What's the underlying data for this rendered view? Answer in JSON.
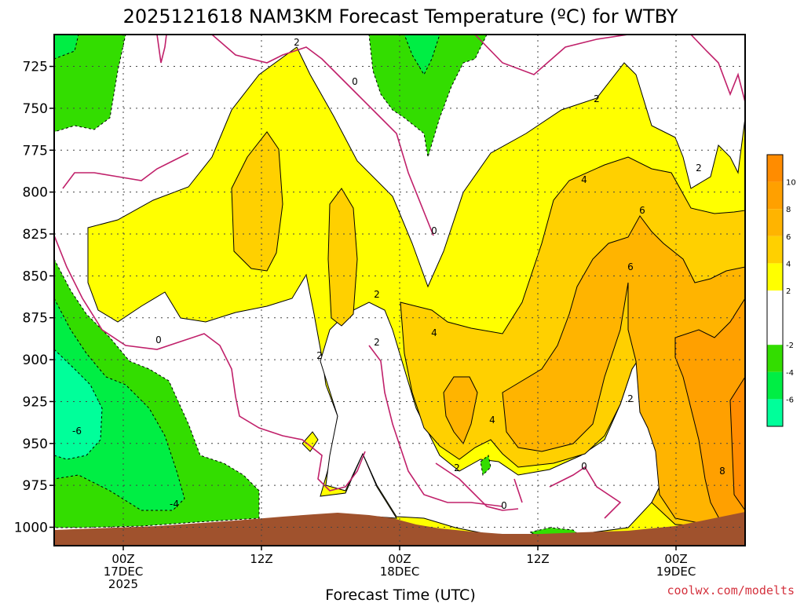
{
  "chart_data": {
    "type": "heatmap",
    "title": "2025121618 NAM3KM Forecast Temperature (ºC) for WTBY",
    "xlabel": "Forecast Time (UTC)",
    "ylabel": "",
    "credit": "coolwx.com/modelts",
    "y_axis": {
      "unit": "hPa",
      "inverted": true,
      "range": [
        1011,
        706
      ],
      "ticks": [
        "725",
        "750",
        "775",
        "800",
        "825",
        "850",
        "875",
        "900",
        "925",
        "950",
        "975",
        "1000"
      ]
    },
    "x_axis": {
      "range_hours_from_run": [
        0,
        60
      ],
      "ticks": [
        {
          "line1": "00Z",
          "line2": "17DEC",
          "line3": "2025"
        },
        {
          "line1": "12Z",
          "line2": "",
          "line3": ""
        },
        {
          "line1": "00Z",
          "line2": "18DEC",
          "line3": ""
        },
        {
          "line1": "12Z",
          "line2": "",
          "line3": ""
        },
        {
          "line1": "00Z",
          "line2": "19DEC",
          "line3": ""
        }
      ]
    },
    "grid": true,
    "colorbar": {
      "placement": "right",
      "tick_labels": [
        "10",
        "8",
        "6",
        "4",
        "2",
        "-2",
        "-4",
        "-6"
      ],
      "bands": [
        {
          "range": [
            10,
            12
          ],
          "color": "#ff8c00"
        },
        {
          "range": [
            8,
            10
          ],
          "color": "#ffa000"
        },
        {
          "range": [
            6,
            8
          ],
          "color": "#ffb400"
        },
        {
          "range": [
            4,
            6
          ],
          "color": "#ffd000"
        },
        {
          "range": [
            2,
            4
          ],
          "color": "#ffff00"
        },
        {
          "range": [
            -2,
            2
          ],
          "color": "#ffffff"
        },
        {
          "range": [
            -4,
            -2
          ],
          "color": "#33dd00"
        },
        {
          "range": [
            -6,
            -4
          ],
          "color": "#00ee44"
        },
        {
          "range": [
            -8,
            -6
          ],
          "color": "#00ff9a"
        }
      ]
    },
    "colors": {
      "zero_contour": "#c0206a",
      "terrain": "#a0522d",
      "gridline": "#555555"
    },
    "contour_labels": [
      "2",
      "0",
      "2",
      "4",
      "6",
      "6",
      "2",
      "2",
      "0",
      "2",
      "0",
      "4",
      "4",
      "2",
      "0",
      "2",
      "0",
      "8",
      "-4",
      "-6",
      "2"
    ]
  }
}
